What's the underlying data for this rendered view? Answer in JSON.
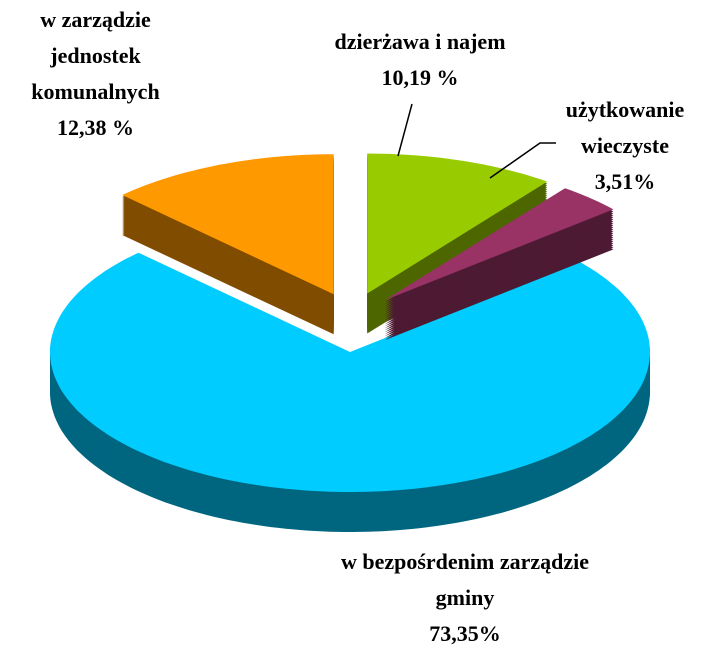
{
  "chart_data": {
    "type": "pie3d",
    "categories": [
      "dzierżawa i najem",
      "użytkowanie wieczyste",
      "w bezpośrdenim zarządzie gminy",
      "w zarządzie jednostek komunalnych"
    ],
    "values": [
      10.19,
      3.51,
      73.35,
      12.38
    ],
    "value_labels": [
      "10,19 %",
      "3,51%",
      "73,35%",
      "12,38 %"
    ],
    "colors": [
      "#99cc00",
      "#993366",
      "#00ccff",
      "#ff9900"
    ],
    "side_colors": [
      "#4d6600",
      "#4d1a33",
      "#006680",
      "#804c00"
    ]
  }
}
